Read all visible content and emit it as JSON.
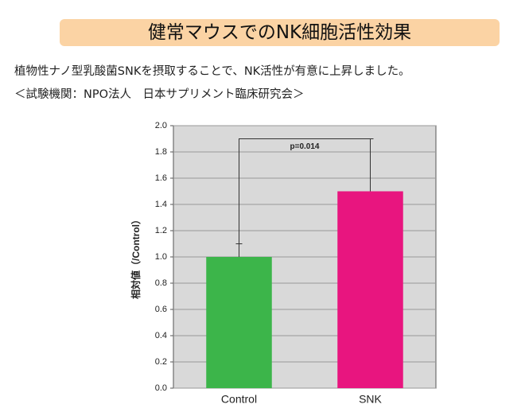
{
  "header": {
    "title": "健常マウスでのNK細胞活性効果"
  },
  "description": [
    "植物性ナノ型乳酸菌SNKを摂取することで、NK活性が有意に上昇しました。",
    "＜試験機関：NPO法人　日本サプリメント臨床研究会＞"
  ],
  "chart_data": {
    "type": "bar",
    "ylabel": "相対値（/Control）",
    "annotation": "p=0.014",
    "categories": [
      "Control",
      "SNK"
    ],
    "values": [
      1.0,
      1.5
    ],
    "errors": [
      0.1,
      0.4
    ],
    "colors": [
      "#3cb54a",
      "#e8157f"
    ],
    "ylim": [
      0,
      2
    ],
    "yticks": [
      {
        "value": 0,
        "label": "0.0"
      },
      0.2,
      0.4,
      0.6,
      0.8,
      {
        "value": 1,
        "label": "1.0"
      },
      1.2,
      1.4,
      1.6,
      1.8,
      {
        "value": 2,
        "label": "2.0"
      }
    ],
    "grid": true
  }
}
